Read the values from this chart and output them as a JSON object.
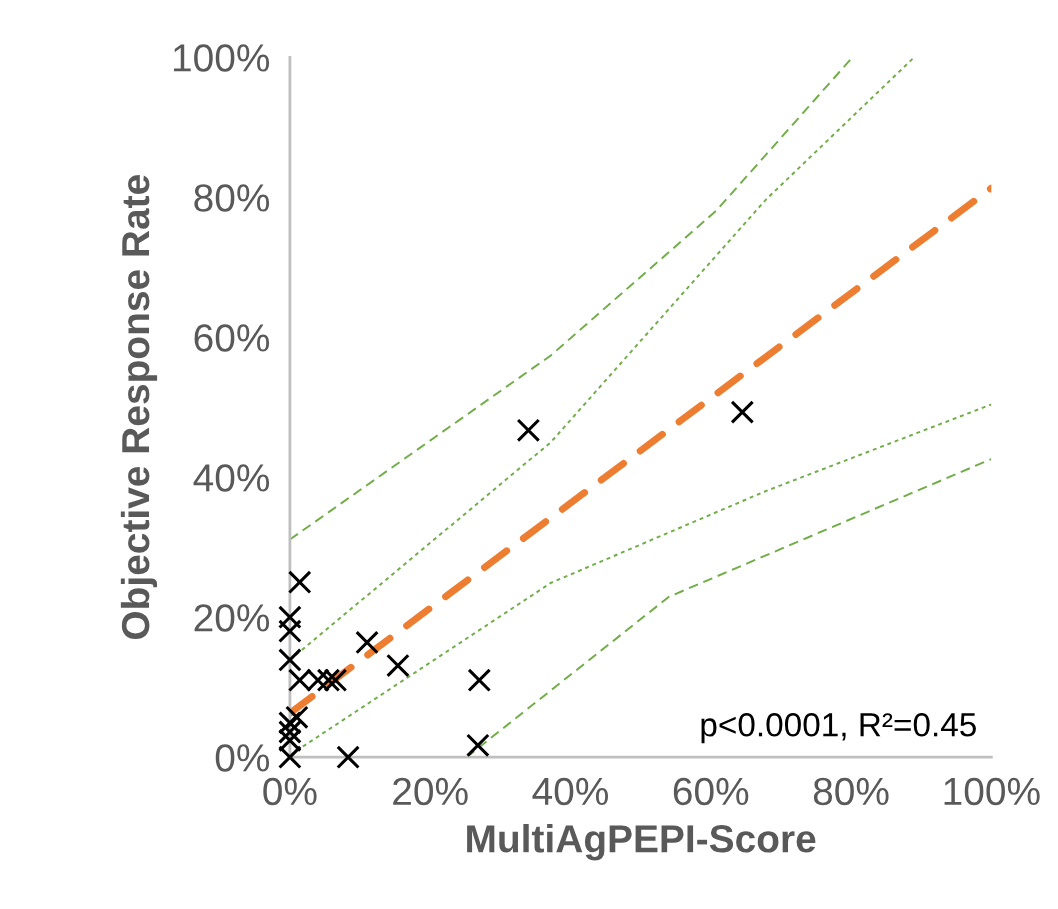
{
  "chart_data": {
    "type": "scatter",
    "xlabel": "MultiAgPEPI-Score",
    "ylabel": "Objective Response Rate",
    "xlim": [
      0,
      100
    ],
    "ylim": [
      0,
      100
    ],
    "xticks": [
      {
        "value": 0,
        "label": "0%"
      },
      {
        "value": 20,
        "label": "20%"
      },
      {
        "value": 40,
        "label": "40%"
      },
      {
        "value": 60,
        "label": "60%"
      },
      {
        "value": 80,
        "label": "80%"
      },
      {
        "value": 100,
        "label": "100%"
      }
    ],
    "yticks": [
      {
        "value": 0,
        "label": "0%"
      },
      {
        "value": 20,
        "label": "20%"
      },
      {
        "value": 40,
        "label": "40%"
      },
      {
        "value": 60,
        "label": "60%"
      },
      {
        "value": 80,
        "label": "80%"
      },
      {
        "value": 100,
        "label": "100%"
      }
    ],
    "grid": false,
    "legend": false,
    "series": [
      {
        "color": "#000000",
        "marker": "cross",
        "x": [
          1.4,
          0,
          0,
          0,
          1.4,
          4,
          5.5,
          6.5,
          11,
          15.4,
          27,
          1,
          0,
          0,
          0,
          0,
          8.3,
          26.8,
          34,
          64.5
        ],
        "values": [
          25,
          20,
          18,
          13.9,
          11,
          11,
          11,
          11,
          16.4,
          13.1,
          11,
          5.7,
          4.9,
          3.6,
          2.4,
          0,
          0,
          1.7,
          46.7,
          49.3
        ]
      },
      {
        "type": "line",
        "color": "#ed7d31",
        "line_style": "dashed",
        "x": [
          0,
          100
        ],
        "values": [
          6.3,
          81.3
        ]
      },
      {
        "type": "line",
        "color": "#70ad47",
        "line_style": "dotted",
        "x": [
          0,
          37.2,
          67.8,
          89
        ],
        "values": [
          13.9,
          45,
          79.6,
          100
        ]
      },
      {
        "type": "line",
        "color": "#70ad47",
        "line_style": "dotted",
        "x": [
          0,
          37.2,
          67.8,
          100
        ],
        "values": [
          0.3,
          24.9,
          38,
          50.4
        ]
      },
      {
        "type": "line",
        "color": "#70ad47",
        "line_style": "dashed",
        "x": [
          0,
          37.2,
          60.8,
          80.2
        ],
        "values": [
          31.1,
          57.4,
          78.1,
          100
        ]
      },
      {
        "type": "line",
        "color": "#70ad47",
        "line_style": "dashed",
        "x": [
          25.2,
          54,
          100
        ],
        "values": [
          0,
          22.9,
          42.6
        ]
      }
    ],
    "annotations": [
      "p<0.0001, R²=0.45"
    ]
  }
}
